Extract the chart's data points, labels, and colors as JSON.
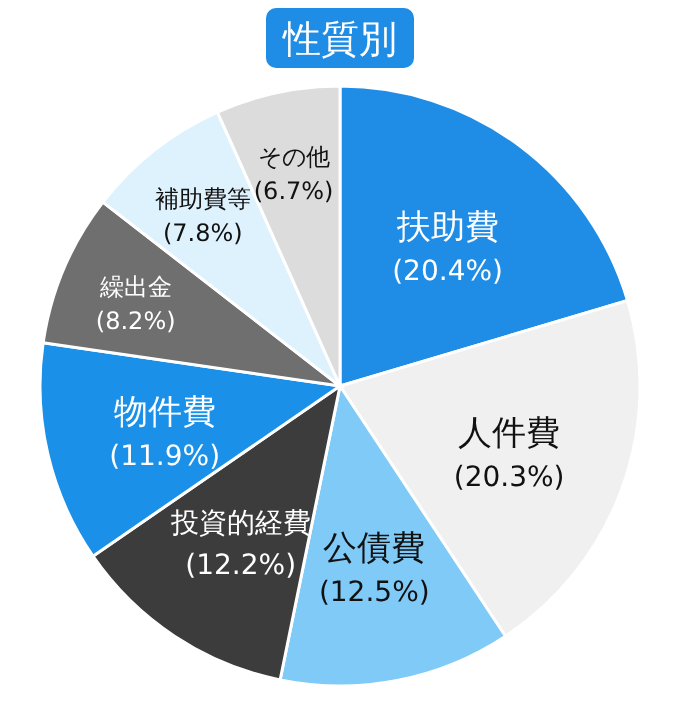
{
  "chart_data": {
    "type": "pie",
    "title": "性質別",
    "categories": [
      "扶助費",
      "人件費",
      "公債費",
      "投資的経費",
      "物件費",
      "繰出金",
      "補助費等",
      "その他"
    ],
    "values": [
      20.4,
      20.3,
      12.5,
      12.2,
      11.9,
      8.2,
      7.8,
      6.7
    ],
    "value_labels": [
      "(20.4%)",
      "(20.3%)",
      "(12.5%)",
      "(12.2%)",
      "(11.9%)",
      "(8.2%)",
      "(7.8%)",
      "(6.7%)"
    ],
    "colors": [
      "#1f8ce6",
      "#f0f0f0",
      "#7fcaf7",
      "#3c3c3c",
      "#1a90e8",
      "#6f6f6f",
      "#def2fd",
      "#dcdcdc"
    ]
  }
}
